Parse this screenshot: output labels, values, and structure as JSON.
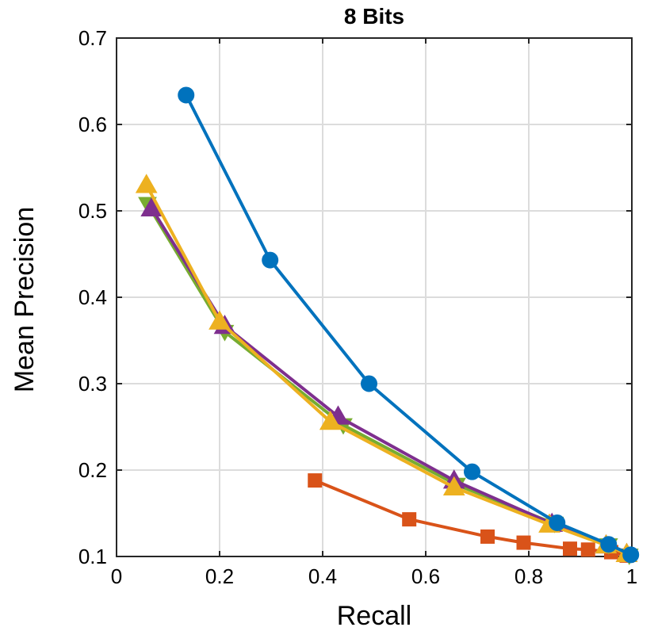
{
  "chart_data": {
    "type": "line",
    "title": "8 Bits",
    "xlabel": "Recall",
    "ylabel": "Mean Precision",
    "xlim": [
      0,
      1
    ],
    "ylim": [
      0.1,
      0.7
    ],
    "xticks": [
      0,
      0.2,
      0.4,
      0.6,
      0.8,
      1
    ],
    "xtick_labels": [
      "0",
      "0.2",
      "0.4",
      "0.6",
      "0.8",
      "1"
    ],
    "yticks": [
      0.1,
      0.2,
      0.3,
      0.4,
      0.5,
      0.6,
      0.7
    ],
    "ytick_labels": [
      "0.1",
      "0.2",
      "0.3",
      "0.4",
      "0.5",
      "0.6",
      "0.7"
    ],
    "grid": true,
    "series": [
      {
        "name": "series-orange-square",
        "color": "#D95319",
        "marker": "square",
        "points": [
          [
            0.385,
            0.188
          ],
          [
            0.568,
            0.143
          ],
          [
            0.72,
            0.123
          ],
          [
            0.79,
            0.116
          ],
          [
            0.88,
            0.109
          ],
          [
            0.915,
            0.108
          ],
          [
            0.96,
            0.105
          ],
          [
            0.99,
            0.101
          ]
        ]
      },
      {
        "name": "series-green-triangle-down",
        "color": "#77AC30",
        "marker": "triangle-down",
        "points": [
          [
            0.06,
            0.508
          ],
          [
            0.21,
            0.36
          ],
          [
            0.44,
            0.252
          ],
          [
            0.66,
            0.183
          ],
          [
            0.85,
            0.138
          ],
          [
            0.955,
            0.113
          ],
          [
            0.995,
            0.101
          ]
        ]
      },
      {
        "name": "series-purple-triangle-up",
        "color": "#7E2F8E",
        "marker": "triangle-up",
        "points": [
          [
            0.068,
            0.503
          ],
          [
            0.21,
            0.367
          ],
          [
            0.43,
            0.262
          ],
          [
            0.655,
            0.188
          ],
          [
            0.845,
            0.138
          ],
          [
            0.95,
            0.113
          ],
          [
            0.99,
            0.103
          ]
        ]
      },
      {
        "name": "series-yellow-triangle-up",
        "color": "#EDB120",
        "marker": "triangle-up",
        "points": [
          [
            0.058,
            0.53
          ],
          [
            0.2,
            0.372
          ],
          [
            0.415,
            0.256
          ],
          [
            0.655,
            0.18
          ],
          [
            0.84,
            0.137
          ],
          [
            0.95,
            0.113
          ],
          [
            0.99,
            0.103
          ]
        ]
      },
      {
        "name": "series-blue-circle",
        "color": "#0072BD",
        "marker": "circle",
        "points": [
          [
            0.135,
            0.634
          ],
          [
            0.298,
            0.443
          ],
          [
            0.49,
            0.3
          ],
          [
            0.69,
            0.198
          ],
          [
            0.855,
            0.139
          ],
          [
            0.955,
            0.114
          ],
          [
            0.998,
            0.102
          ]
        ]
      }
    ]
  }
}
